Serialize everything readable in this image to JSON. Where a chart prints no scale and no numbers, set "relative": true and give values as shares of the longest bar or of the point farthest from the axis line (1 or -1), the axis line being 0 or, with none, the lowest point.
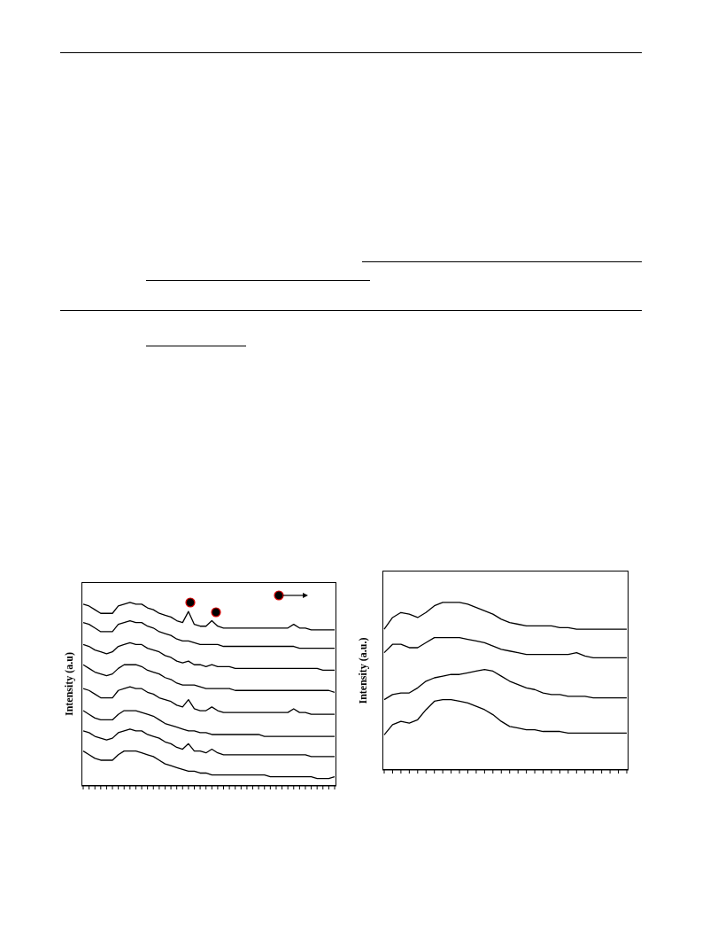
{
  "chart_data": [
    {
      "type": "line",
      "relative": true,
      "ylabel": "Intensity (a.u)",
      "marker": "none",
      "line_style": "solid",
      "categories": [
        null,
        null,
        null,
        null,
        null,
        null,
        null,
        null,
        null,
        null,
        null,
        null,
        null,
        null,
        null,
        null,
        null,
        null,
        null,
        null,
        null,
        null,
        null,
        null,
        null,
        null,
        null,
        null,
        null,
        null,
        null,
        null,
        null,
        null,
        null,
        null,
        null,
        null,
        null,
        null,
        null,
        null,
        null,
        null
      ],
      "series": [
        {
          "color": "#000000",
          "values": [
            0.99,
            0.98,
            0.96,
            0.94,
            0.94,
            0.94,
            0.98,
            0.99,
            1.0,
            0.99,
            0.99,
            0.97,
            0.96,
            0.94,
            0.93,
            0.92,
            0.9,
            0.89,
            0.95,
            0.88,
            0.87,
            0.87,
            0.9,
            0.87,
            0.86,
            0.86,
            0.86,
            0.86,
            0.86,
            0.86,
            0.86,
            0.86,
            0.86,
            0.86,
            0.86,
            0.86,
            0.88,
            0.86,
            0.86,
            0.85,
            0.85,
            0.85,
            0.85,
            0.85
          ]
        },
        {
          "color": "#000000",
          "values": [
            0.89,
            0.88,
            0.86,
            0.84,
            0.84,
            0.84,
            0.88,
            0.89,
            0.9,
            0.89,
            0.89,
            0.87,
            0.86,
            0.84,
            0.83,
            0.82,
            0.8,
            0.79,
            0.79,
            0.78,
            0.77,
            0.77,
            0.77,
            0.77,
            0.76,
            0.76,
            0.76,
            0.76,
            0.76,
            0.76,
            0.76,
            0.76,
            0.76,
            0.76,
            0.76,
            0.76,
            0.76,
            0.75,
            0.75,
            0.75,
            0.75,
            0.75,
            0.75,
            0.75
          ]
        },
        {
          "color": "#000000",
          "values": [
            0.77,
            0.76,
            0.74,
            0.73,
            0.72,
            0.73,
            0.76,
            0.77,
            0.78,
            0.77,
            0.77,
            0.75,
            0.74,
            0.73,
            0.71,
            0.7,
            0.68,
            0.67,
            0.68,
            0.66,
            0.66,
            0.65,
            0.66,
            0.65,
            0.65,
            0.65,
            0.64,
            0.64,
            0.64,
            0.64,
            0.64,
            0.64,
            0.64,
            0.64,
            0.64,
            0.64,
            0.64,
            0.64,
            0.64,
            0.64,
            0.64,
            0.63,
            0.63,
            0.63
          ]
        },
        {
          "color": "#000000",
          "values": [
            0.66,
            0.64,
            0.62,
            0.61,
            0.6,
            0.61,
            0.64,
            0.66,
            0.66,
            0.66,
            0.65,
            0.63,
            0.62,
            0.61,
            0.59,
            0.58,
            0.56,
            0.55,
            0.55,
            0.55,
            0.54,
            0.53,
            0.53,
            0.53,
            0.53,
            0.53,
            0.52,
            0.52,
            0.52,
            0.52,
            0.52,
            0.52,
            0.52,
            0.52,
            0.52,
            0.52,
            0.52,
            0.52,
            0.52,
            0.52,
            0.52,
            0.52,
            0.52,
            0.51
          ]
        },
        {
          "color": "#000000",
          "values": [
            0.53,
            0.52,
            0.5,
            0.48,
            0.48,
            0.48,
            0.52,
            0.53,
            0.54,
            0.53,
            0.53,
            0.51,
            0.5,
            0.48,
            0.47,
            0.46,
            0.44,
            0.43,
            0.47,
            0.42,
            0.41,
            0.41,
            0.43,
            0.41,
            0.4,
            0.4,
            0.4,
            0.4,
            0.4,
            0.4,
            0.4,
            0.4,
            0.4,
            0.4,
            0.4,
            0.4,
            0.42,
            0.4,
            0.4,
            0.39,
            0.39,
            0.39,
            0.39,
            0.39
          ]
        },
        {
          "color": "#000000",
          "values": [
            0.41,
            0.39,
            0.37,
            0.36,
            0.36,
            0.36,
            0.39,
            0.41,
            0.41,
            0.41,
            0.4,
            0.39,
            0.38,
            0.36,
            0.34,
            0.33,
            0.32,
            0.31,
            0.3,
            0.3,
            0.29,
            0.29,
            0.28,
            0.28,
            0.28,
            0.28,
            0.28,
            0.28,
            0.28,
            0.28,
            0.28,
            0.27,
            0.27,
            0.27,
            0.27,
            0.27,
            0.27,
            0.27,
            0.27,
            0.27,
            0.27,
            0.27,
            0.27,
            0.27
          ]
        },
        {
          "color": "#000000",
          "values": [
            0.3,
            0.29,
            0.27,
            0.26,
            0.25,
            0.26,
            0.29,
            0.3,
            0.31,
            0.3,
            0.3,
            0.28,
            0.27,
            0.26,
            0.24,
            0.23,
            0.21,
            0.2,
            0.23,
            0.19,
            0.19,
            0.18,
            0.2,
            0.18,
            0.17,
            0.17,
            0.17,
            0.17,
            0.17,
            0.17,
            0.17,
            0.17,
            0.17,
            0.17,
            0.17,
            0.17,
            0.17,
            0.17,
            0.17,
            0.16,
            0.16,
            0.16,
            0.16,
            0.16
          ]
        },
        {
          "color": "#000000",
          "values": [
            0.19,
            0.17,
            0.15,
            0.14,
            0.14,
            0.14,
            0.17,
            0.19,
            0.19,
            0.19,
            0.18,
            0.17,
            0.16,
            0.14,
            0.12,
            0.11,
            0.1,
            0.09,
            0.08,
            0.08,
            0.07,
            0.07,
            0.06,
            0.06,
            0.06,
            0.06,
            0.06,
            0.06,
            0.06,
            0.06,
            0.06,
            0.06,
            0.05,
            0.05,
            0.05,
            0.05,
            0.05,
            0.05,
            0.05,
            0.05,
            0.04,
            0.04,
            0.04,
            0.05
          ]
        }
      ]
    },
    {
      "type": "line",
      "relative": true,
      "ylabel": "Intensity (a.u.)",
      "marker": "none",
      "line_style": "solid",
      "categories": [
        null,
        null,
        null,
        null,
        null,
        null,
        null,
        null,
        null,
        null,
        null,
        null,
        null,
        null,
        null,
        null,
        null,
        null,
        null,
        null,
        null,
        null,
        null,
        null,
        null,
        null,
        null,
        null,
        null,
        null
      ],
      "series": [
        {
          "color": "#000000",
          "values": [
            0.84,
            0.91,
            0.94,
            0.93,
            0.91,
            0.94,
            0.98,
            1.0,
            1.0,
            1.0,
            0.99,
            0.97,
            0.95,
            0.93,
            0.9,
            0.88,
            0.87,
            0.86,
            0.86,
            0.86,
            0.86,
            0.85,
            0.85,
            0.84,
            0.84,
            0.84,
            0.84,
            0.84,
            0.84,
            0.84
          ]
        },
        {
          "color": "#000000",
          "values": [
            0.7,
            0.75,
            0.75,
            0.73,
            0.73,
            0.76,
            0.79,
            0.79,
            0.79,
            0.79,
            0.78,
            0.77,
            0.76,
            0.74,
            0.72,
            0.71,
            0.7,
            0.69,
            0.69,
            0.69,
            0.69,
            0.69,
            0.69,
            0.7,
            0.68,
            0.67,
            0.67,
            0.67,
            0.67,
            0.67
          ]
        },
        {
          "color": "#000000",
          "values": [
            0.42,
            0.45,
            0.46,
            0.46,
            0.49,
            0.53,
            0.55,
            0.56,
            0.57,
            0.57,
            0.58,
            0.59,
            0.6,
            0.59,
            0.56,
            0.53,
            0.51,
            0.49,
            0.48,
            0.46,
            0.45,
            0.45,
            0.44,
            0.44,
            0.44,
            0.43,
            0.43,
            0.43,
            0.43,
            0.43
          ]
        },
        {
          "color": "#000000",
          "values": [
            0.21,
            0.27,
            0.29,
            0.28,
            0.3,
            0.36,
            0.41,
            0.42,
            0.42,
            0.41,
            0.4,
            0.38,
            0.36,
            0.33,
            0.29,
            0.26,
            0.25,
            0.24,
            0.24,
            0.23,
            0.23,
            0.23,
            0.22,
            0.22,
            0.22,
            0.22,
            0.22,
            0.22,
            0.22,
            0.22
          ]
        }
      ]
    }
  ]
}
